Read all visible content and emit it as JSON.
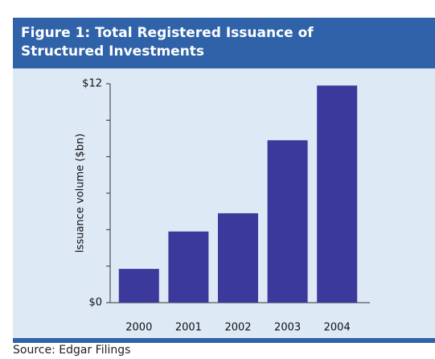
{
  "chart_data": {
    "type": "bar",
    "title": "Figure 1: Total Registered Issuance of Structured Investments",
    "y_label": "Issuance volume ($bn)",
    "categories": [
      "2000",
      "2001",
      "2002",
      "2003",
      "2004"
    ],
    "values": [
      1.85,
      3.9,
      4.9,
      8.9,
      11.9
    ],
    "color": "#3b3a9c",
    "ylim": [
      0,
      12
    ],
    "yticks": [
      {
        "value": 0,
        "label": "$0"
      },
      {
        "value": 12,
        "label": "$12"
      }
    ],
    "minor_yticks": [
      2,
      4,
      6,
      8,
      10
    ],
    "source": "Source: Edgar Filings"
  }
}
